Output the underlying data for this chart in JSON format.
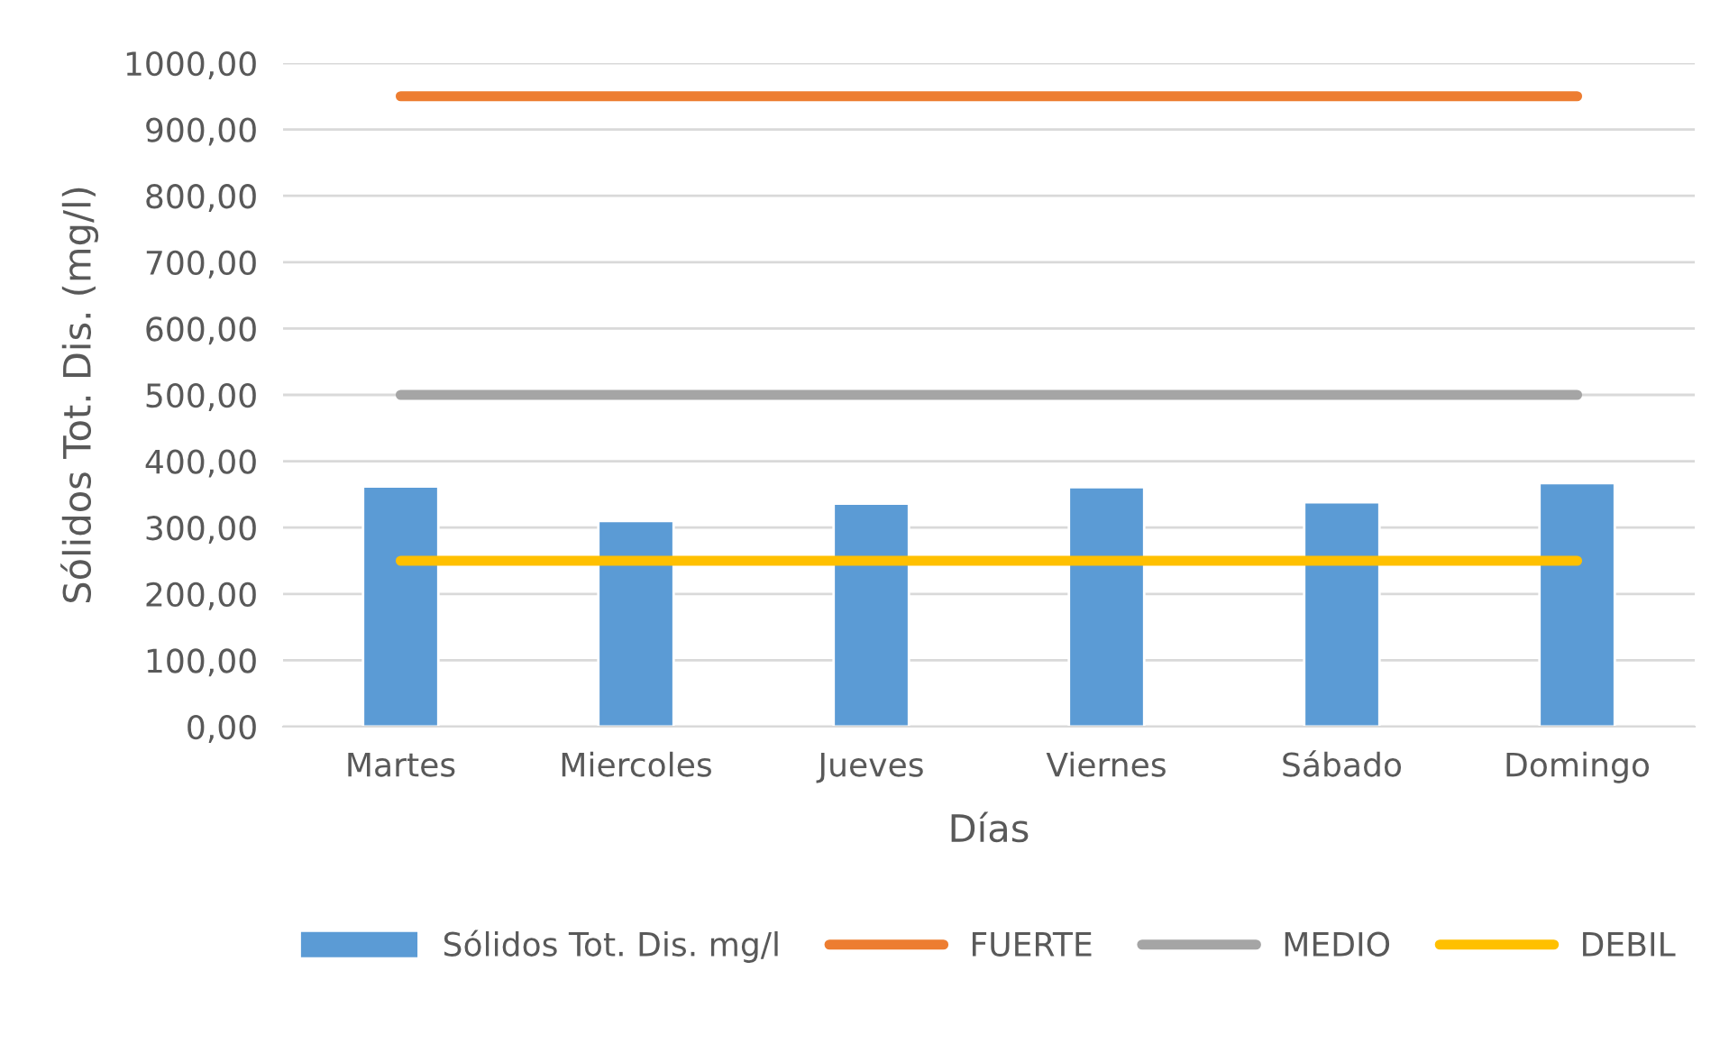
{
  "chart_data": {
    "type": "bar",
    "xlabel": "Días",
    "ylabel": "Sólidos Tot. Dis. (mg/l)",
    "categories": [
      "Martes",
      "Miercoles",
      "Jueves",
      "Viernes",
      "Sábado",
      "Domingo"
    ],
    "series": [
      {
        "name": "Sólidos Tot. Dis. mg/l",
        "color": "#5b9bd5",
        "values": [
          362,
          310,
          336,
          361,
          338,
          367
        ]
      },
      {
        "name": "FUERTE",
        "type": "line",
        "color": "#ed7d31",
        "values": [
          950,
          950,
          950,
          950,
          950,
          950
        ]
      },
      {
        "name": "MEDIO",
        "type": "line",
        "color": "#a5a5a5",
        "values": [
          500,
          500,
          500,
          500,
          500,
          500
        ]
      },
      {
        "name": "DEBIL",
        "type": "line",
        "color": "#ffc000",
        "values": [
          250,
          250,
          250,
          250,
          250,
          250
        ]
      }
    ],
    "ylim": [
      0,
      1000
    ],
    "yticks": [
      {
        "value": 0,
        "label": "0,00"
      },
      {
        "value": 100,
        "label": "100,00"
      },
      {
        "value": 200,
        "label": "200,00"
      },
      {
        "value": 300,
        "label": "300,00"
      },
      {
        "value": 400,
        "label": "400,00"
      },
      {
        "value": 500,
        "label": "500,00"
      },
      {
        "value": 600,
        "label": "600,00"
      },
      {
        "value": 700,
        "label": "700,00"
      },
      {
        "value": 800,
        "label": "800,00"
      },
      {
        "value": 900,
        "label": "900,00"
      },
      {
        "value": 1000,
        "label": "1000,00"
      }
    ],
    "grid": "y",
    "legend": "bottom"
  }
}
